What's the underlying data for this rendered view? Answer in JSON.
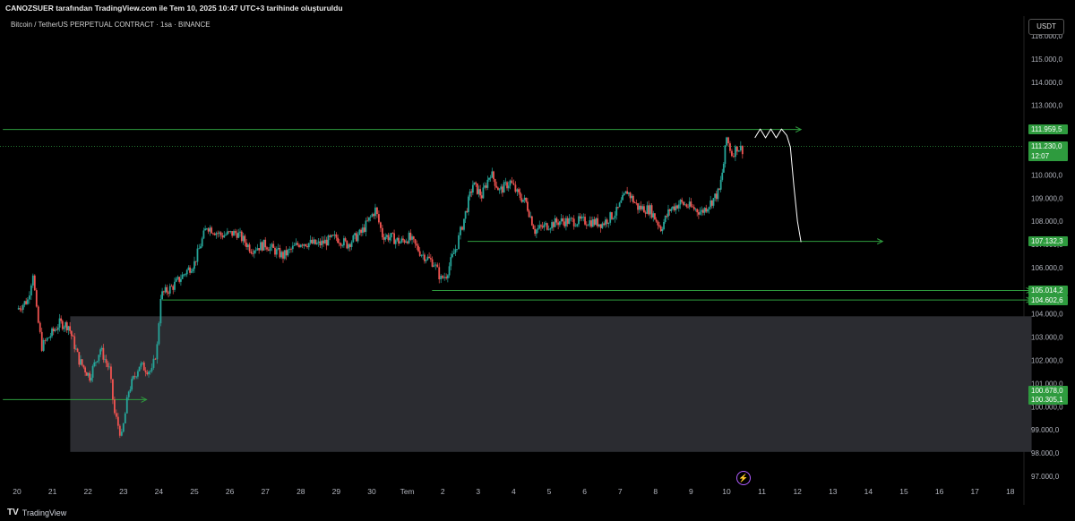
{
  "header": {
    "attribution": "CANOZSUER tarafından TradingView.com ile Tem 10, 2025 10:47 UTC+3 tarihinde oluşturuldu"
  },
  "symbol": {
    "title": "Bitcoin / TetherUS PERPETUAL CONTRACT · 1sa · BINANCE"
  },
  "currency": "USDT",
  "footer": {
    "brand": "TradingView"
  },
  "colors": {
    "up": "#26a69a",
    "down": "#ef5350",
    "level": "#2e9b3e",
    "zone": "#2b2c31",
    "projection": "#ffffff"
  },
  "chart_data": {
    "type": "candlestick",
    "title": "Bitcoin / TetherUS PERPETUAL CONTRACT · 1sa · BINANCE",
    "xlabel": "",
    "ylabel": "",
    "ylim": [
      97000,
      116800
    ],
    "grid": false,
    "y_ticks": [
      {
        "v": 97000,
        "label": "97.000,0"
      },
      {
        "v": 98000,
        "label": "98.000,0"
      },
      {
        "v": 99000,
        "label": "99.000,0"
      },
      {
        "v": 100000,
        "label": "100.000,0"
      },
      {
        "v": 101000,
        "label": "101.000,0"
      },
      {
        "v": 102000,
        "label": "102.000,0"
      },
      {
        "v": 103000,
        "label": "103.000,0"
      },
      {
        "v": 104000,
        "label": "104.000,0"
      },
      {
        "v": 105000,
        "label": "105.000,0"
      },
      {
        "v": 106000,
        "label": "106.000,0"
      },
      {
        "v": 107000,
        "label": "107.000,0"
      },
      {
        "v": 108000,
        "label": "108.000,0"
      },
      {
        "v": 109000,
        "label": "109.000,0"
      },
      {
        "v": 110000,
        "label": "110.000,0"
      },
      {
        "v": 111000,
        "label": "111.000,0"
      },
      {
        "v": 112000,
        "label": "112.000,0"
      },
      {
        "v": 113000,
        "label": "113.000,0"
      },
      {
        "v": 114000,
        "label": "114.000,0"
      },
      {
        "v": 115000,
        "label": "115.000,0"
      },
      {
        "v": 116000,
        "label": "116.000,0"
      }
    ],
    "x_ticks": [
      {
        "d": 0,
        "label": "20"
      },
      {
        "d": 1,
        "label": "21"
      },
      {
        "d": 2,
        "label": "22"
      },
      {
        "d": 3,
        "label": "23"
      },
      {
        "d": 4,
        "label": "24"
      },
      {
        "d": 5,
        "label": "25"
      },
      {
        "d": 6,
        "label": "26"
      },
      {
        "d": 7,
        "label": "27"
      },
      {
        "d": 8,
        "label": "28"
      },
      {
        "d": 9,
        "label": "29"
      },
      {
        "d": 10,
        "label": "30"
      },
      {
        "d": 11,
        "label": "Tem"
      },
      {
        "d": 12,
        "label": "2"
      },
      {
        "d": 13,
        "label": "3"
      },
      {
        "d": 14,
        "label": "4"
      },
      {
        "d": 15,
        "label": "5"
      },
      {
        "d": 16,
        "label": "6"
      },
      {
        "d": 17,
        "label": "7"
      },
      {
        "d": 18,
        "label": "8"
      },
      {
        "d": 19,
        "label": "9"
      },
      {
        "d": 20,
        "label": "10"
      },
      {
        "d": 21,
        "label": "11"
      },
      {
        "d": 22,
        "label": "12"
      },
      {
        "d": 23,
        "label": "13"
      },
      {
        "d": 24,
        "label": "14"
      },
      {
        "d": 25,
        "label": "15"
      },
      {
        "d": 26,
        "label": "16"
      },
      {
        "d": 27,
        "label": "17"
      },
      {
        "d": 28,
        "label": "18"
      }
    ],
    "price_path": [
      [
        0,
        104200
      ],
      [
        0.3,
        104600
      ],
      [
        0.45,
        105800
      ],
      [
        0.55,
        104100
      ],
      [
        0.7,
        102600
      ],
      [
        0.9,
        103000
      ],
      [
        1.2,
        103600
      ],
      [
        1.45,
        103500
      ],
      [
        1.75,
        102000
      ],
      [
        2.05,
        101300
      ],
      [
        2.35,
        102500
      ],
      [
        2.6,
        101600
      ],
      [
        2.75,
        99700
      ],
      [
        2.95,
        98700
      ],
      [
        3.15,
        100700
      ],
      [
        3.45,
        101800
      ],
      [
        3.8,
        101500
      ],
      [
        3.95,
        102600
      ],
      [
        4.05,
        104800
      ],
      [
        4.4,
        105200
      ],
      [
        4.75,
        105800
      ],
      [
        5.0,
        106200
      ],
      [
        5.35,
        107800
      ],
      [
        5.75,
        107400
      ],
      [
        6.2,
        107500
      ],
      [
        6.6,
        106800
      ],
      [
        7.0,
        107000
      ],
      [
        7.5,
        106500
      ],
      [
        8.0,
        107100
      ],
      [
        8.5,
        107000
      ],
      [
        9.0,
        107300
      ],
      [
        9.3,
        107000
      ],
      [
        9.7,
        107500
      ],
      [
        10.1,
        108500
      ],
      [
        10.3,
        107400
      ],
      [
        10.55,
        107300
      ],
      [
        10.8,
        107100
      ],
      [
        11.05,
        107300
      ],
      [
        11.4,
        106600
      ],
      [
        11.75,
        106200
      ],
      [
        11.95,
        105500
      ],
      [
        12.1,
        105700
      ],
      [
        12.4,
        107000
      ],
      [
        12.6,
        108100
      ],
      [
        12.85,
        109600
      ],
      [
        13.1,
        109100
      ],
      [
        13.35,
        110100
      ],
      [
        13.6,
        109300
      ],
      [
        13.9,
        109700
      ],
      [
        14.1,
        109200
      ],
      [
        14.35,
        108800
      ],
      [
        14.6,
        107600
      ],
      [
        14.9,
        107800
      ],
      [
        15.3,
        108000
      ],
      [
        15.7,
        108000
      ],
      [
        16.1,
        108000
      ],
      [
        16.5,
        107900
      ],
      [
        16.9,
        108400
      ],
      [
        17.2,
        109300
      ],
      [
        17.5,
        108600
      ],
      [
        17.85,
        108500
      ],
      [
        18.15,
        107700
      ],
      [
        18.4,
        108500
      ],
      [
        18.7,
        108800
      ],
      [
        19.0,
        108600
      ],
      [
        19.3,
        108400
      ],
      [
        19.55,
        108800
      ],
      [
        19.8,
        109300
      ],
      [
        19.92,
        110500
      ],
      [
        20.0,
        111600
      ],
      [
        20.15,
        110900
      ],
      [
        20.3,
        111200
      ],
      [
        20.45,
        111100
      ]
    ],
    "levels": [
      {
        "value": 111959.5,
        "label": "111.959,5",
        "x_start": -0.4,
        "x_end": 22.1
      },
      {
        "value": 107132.3,
        "label": "107.132,3",
        "x_start": 12.7,
        "x_end": 24.4
      },
      {
        "value": 105014.2,
        "label": "105.014,2",
        "x_start": 11.7,
        "x_end": 28.6
      },
      {
        "value": 104602.6,
        "label": "104.602,6",
        "x_start": 4.1,
        "x_end": 28.6
      },
      {
        "value": 100305.1,
        "label": "100.305,1",
        "x_start": -0.4,
        "x_end": 3.65
      }
    ],
    "current_price": {
      "value": 111230.0,
      "label": "111.230,0",
      "countdown": "12:07"
    },
    "annotation": {
      "value": 100678.0,
      "label": "100.678,0"
    },
    "demand_zone": {
      "low": 98050,
      "high": 103900,
      "x_start": 1.5,
      "x_end": 28.6
    },
    "projection": [
      [
        20.8,
        111600
      ],
      [
        20.95,
        111980
      ],
      [
        21.1,
        111600
      ],
      [
        21.25,
        111980
      ],
      [
        21.4,
        111600
      ],
      [
        21.55,
        111980
      ],
      [
        21.7,
        111700
      ],
      [
        21.8,
        111200
      ],
      [
        21.9,
        109500
      ],
      [
        22.0,
        108000
      ],
      [
        22.1,
        107100
      ]
    ]
  }
}
